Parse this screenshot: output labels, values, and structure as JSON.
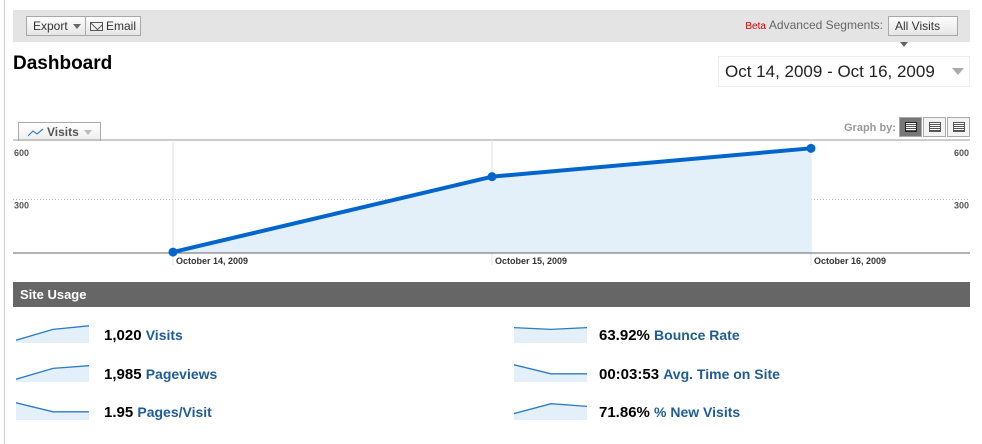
{
  "toolbar": {
    "export_label": "Export",
    "email_label": "Email",
    "beta_label": "Beta",
    "segments_label": "Advanced Segments:",
    "segment_value": "All Visits"
  },
  "page_title": "Dashboard",
  "date_range": "Oct 14, 2009 - Oct 16, 2009",
  "graph": {
    "metric_tab": "Visits",
    "graph_by_label": "Graph by:"
  },
  "chart_data": {
    "type": "area",
    "x": [
      "October 14, 2009",
      "October 15, 2009",
      "October 16, 2009"
    ],
    "values": [
      5,
      428,
      587
    ],
    "ylim": [
      0,
      600
    ],
    "yticks": [
      "300",
      "600"
    ],
    "series_name": "Visits",
    "color": "#0066cc",
    "fill": "#e3eff9"
  },
  "site_usage": {
    "title": "Site Usage",
    "metrics": [
      {
        "value": "1,020",
        "label": "Visits",
        "spark": [
          0.1,
          0.7,
          0.9
        ]
      },
      {
        "value": "1,985",
        "label": "Pageviews",
        "spark": [
          0.1,
          0.7,
          0.85
        ]
      },
      {
        "value": "1.95",
        "label": "Pages/Visit",
        "spark": [
          0.9,
          0.4,
          0.4
        ]
      },
      {
        "value": "63.92%",
        "label": "Bounce Rate",
        "spark": [
          0.8,
          0.7,
          0.8
        ]
      },
      {
        "value": "00:03:53",
        "label": "Avg. Time on Site",
        "spark": [
          0.9,
          0.4,
          0.4
        ]
      },
      {
        "value": "71.86%",
        "label": "% New Visits",
        "spark": [
          0.3,
          0.85,
          0.7
        ]
      }
    ]
  }
}
